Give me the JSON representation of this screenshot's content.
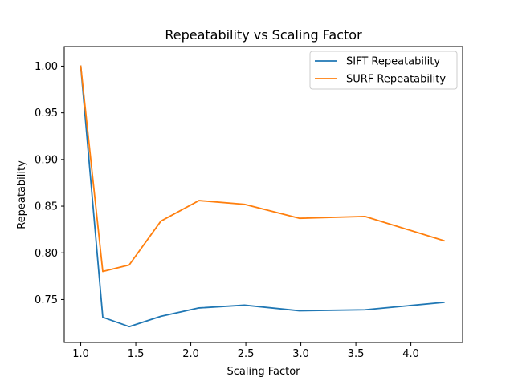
{
  "chart_data": {
    "type": "line",
    "title": "Repeatability vs Scaling Factor",
    "xlabel": "Scaling Factor",
    "ylabel": "Repeatability",
    "xlim": [
      0.85,
      4.47
    ],
    "ylim": [
      0.704,
      1.021
    ],
    "xticks": [
      1.0,
      1.5,
      2.0,
      2.5,
      3.0,
      3.5,
      4.0
    ],
    "xtick_labels": [
      "1.0",
      "1.5",
      "2.0",
      "2.5",
      "3.0",
      "3.5",
      "4.0"
    ],
    "yticks": [
      0.75,
      0.8,
      0.85,
      0.9,
      0.95,
      1.0
    ],
    "ytick_labels": [
      "0.75",
      "0.80",
      "0.85",
      "0.90",
      "0.95",
      "1.00"
    ],
    "grid": false,
    "legend_position": "top-right",
    "x": [
      1.0,
      1.2,
      1.44,
      1.728,
      2.074,
      2.488,
      2.986,
      3.583,
      4.3
    ],
    "series": [
      {
        "name": "SIFT Repeatability",
        "color": "#1f77b4",
        "values": [
          1.0,
          0.731,
          0.721,
          0.732,
          0.741,
          0.744,
          0.738,
          0.739,
          0.747
        ]
      },
      {
        "name": "SURF Repeatability",
        "color": "#ff7f0e",
        "values": [
          1.0,
          0.78,
          0.787,
          0.834,
          0.856,
          0.852,
          0.837,
          0.839,
          0.813
        ]
      }
    ]
  }
}
